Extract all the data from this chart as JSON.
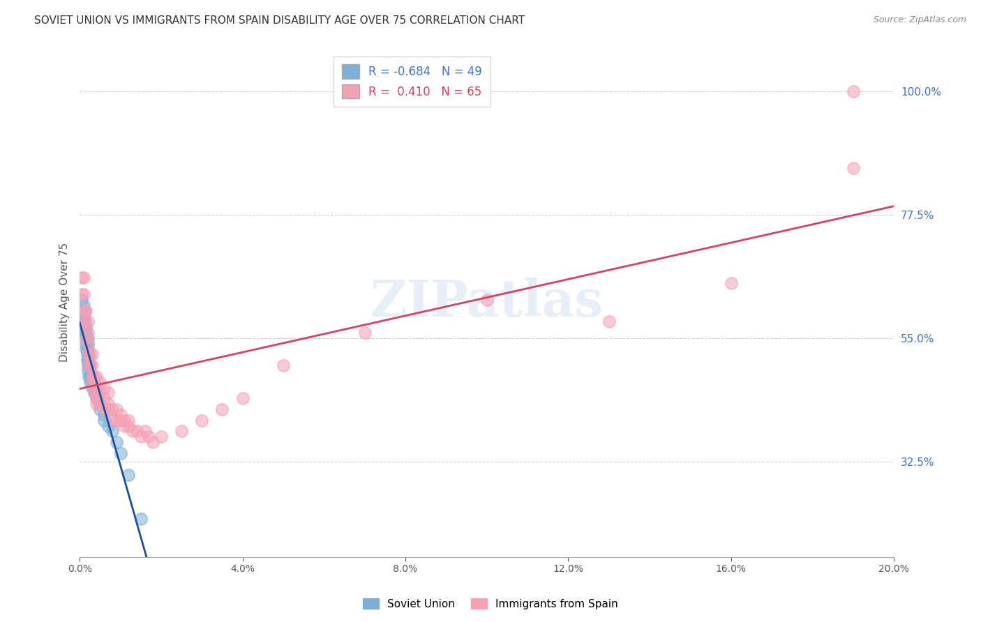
{
  "title": "SOVIET UNION VS IMMIGRANTS FROM SPAIN DISABILITY AGE OVER 75 CORRELATION CHART",
  "source": "Source: ZipAtlas.com",
  "ylabel": "Disability Age Over 75",
  "ytick_labels": [
    "100.0%",
    "77.5%",
    "55.0%",
    "32.5%"
  ],
  "ytick_values": [
    1.0,
    0.775,
    0.55,
    0.325
  ],
  "legend_blue_r": "-0.684",
  "legend_blue_n": "49",
  "legend_pink_r": "0.410",
  "legend_pink_n": "65",
  "legend_labels": [
    "Soviet Union",
    "Immigrants from Spain"
  ],
  "blue_color": "#7cafd6",
  "pink_color": "#f4a0b5",
  "blue_line_color": "#1a4fa0",
  "pink_line_color": "#d94060",
  "background_color": "#ffffff",
  "grid_color": "#d0d0d0",
  "blue_scatter_x": [
    0.0005,
    0.0005,
    0.0008,
    0.001,
    0.001,
    0.001,
    0.001,
    0.001,
    0.0012,
    0.0013,
    0.0013,
    0.0015,
    0.0015,
    0.0015,
    0.0015,
    0.0015,
    0.0018,
    0.0018,
    0.002,
    0.002,
    0.002,
    0.002,
    0.002,
    0.002,
    0.002,
    0.0022,
    0.0022,
    0.0025,
    0.0025,
    0.0025,
    0.003,
    0.003,
    0.003,
    0.0035,
    0.0035,
    0.0035,
    0.004,
    0.004,
    0.004,
    0.005,
    0.005,
    0.006,
    0.006,
    0.007,
    0.008,
    0.009,
    0.01,
    0.012,
    0.015
  ],
  "blue_scatter_y": [
    0.6,
    0.62,
    0.58,
    0.57,
    0.58,
    0.59,
    0.6,
    0.61,
    0.56,
    0.57,
    0.58,
    0.53,
    0.54,
    0.55,
    0.56,
    0.57,
    0.51,
    0.52,
    0.49,
    0.5,
    0.51,
    0.52,
    0.53,
    0.54,
    0.55,
    0.48,
    0.5,
    0.47,
    0.48,
    0.5,
    0.46,
    0.47,
    0.48,
    0.45,
    0.46,
    0.47,
    0.44,
    0.45,
    0.46,
    0.42,
    0.43,
    0.4,
    0.41,
    0.39,
    0.38,
    0.36,
    0.34,
    0.3,
    0.22
  ],
  "pink_scatter_x": [
    0.0005,
    0.0005,
    0.001,
    0.001,
    0.001,
    0.0012,
    0.0013,
    0.0015,
    0.0015,
    0.0015,
    0.002,
    0.002,
    0.002,
    0.002,
    0.0022,
    0.0025,
    0.0025,
    0.003,
    0.003,
    0.003,
    0.003,
    0.0035,
    0.0035,
    0.0035,
    0.004,
    0.004,
    0.004,
    0.004,
    0.005,
    0.005,
    0.005,
    0.006,
    0.006,
    0.006,
    0.007,
    0.007,
    0.007,
    0.008,
    0.008,
    0.009,
    0.009,
    0.01,
    0.01,
    0.011,
    0.011,
    0.012,
    0.012,
    0.013,
    0.014,
    0.015,
    0.016,
    0.017,
    0.018,
    0.02,
    0.025,
    0.03,
    0.035,
    0.04,
    0.05,
    0.07,
    0.1,
    0.13,
    0.16,
    0.19,
    0.19
  ],
  "pink_scatter_y": [
    0.63,
    0.66,
    0.6,
    0.63,
    0.66,
    0.58,
    0.6,
    0.55,
    0.57,
    0.6,
    0.52,
    0.54,
    0.56,
    0.58,
    0.5,
    0.5,
    0.52,
    0.47,
    0.48,
    0.5,
    0.52,
    0.45,
    0.46,
    0.48,
    0.43,
    0.44,
    0.46,
    0.48,
    0.43,
    0.45,
    0.47,
    0.42,
    0.44,
    0.46,
    0.42,
    0.43,
    0.45,
    0.4,
    0.42,
    0.4,
    0.42,
    0.4,
    0.41,
    0.39,
    0.4,
    0.39,
    0.4,
    0.38,
    0.38,
    0.37,
    0.38,
    0.37,
    0.36,
    0.37,
    0.38,
    0.4,
    0.42,
    0.44,
    0.5,
    0.56,
    0.62,
    0.58,
    0.65,
    0.86,
    1.0
  ],
  "xlim": [
    0.0,
    0.2
  ],
  "ylim": [
    0.15,
    1.08
  ],
  "xtick_positions": [
    0.0,
    0.04,
    0.08,
    0.12,
    0.16,
    0.2
  ],
  "xtick_labels": [
    "0.0%",
    "4.0%",
    "8.0%",
    "12.0%",
    "16.0%",
    "20.0%"
  ]
}
